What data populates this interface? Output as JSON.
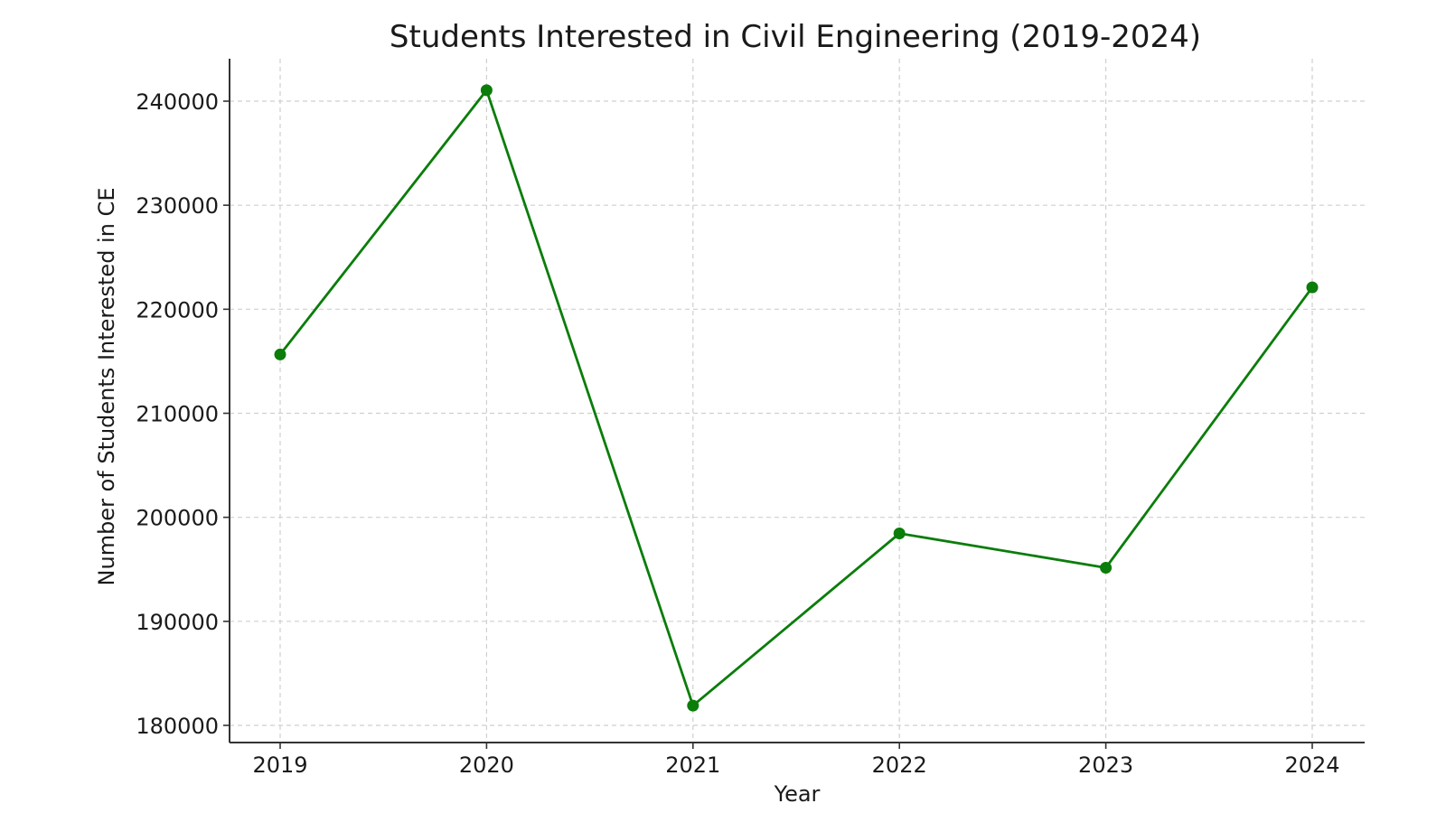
{
  "chart_data": {
    "type": "line",
    "title": "Students Interested in Civil Engineering (2019-2024)",
    "xlabel": "Year",
    "ylabel": "Number of Students Interested in CE",
    "categories": [
      "2019",
      "2020",
      "2021",
      "2022",
      "2023",
      "2024"
    ],
    "series": [
      {
        "name": "Students Interested in CE",
        "values": [
          215650,
          241050,
          181900,
          198450,
          195150,
          222100
        ],
        "color": "#0a7d0a",
        "marker": "circle"
      }
    ],
    "yticks": [
      180000,
      190000,
      200000,
      210000,
      220000,
      230000,
      240000
    ],
    "ylim": [
      179200,
      244300
    ],
    "grid": true,
    "grid_style": "dashed",
    "legend": null
  }
}
